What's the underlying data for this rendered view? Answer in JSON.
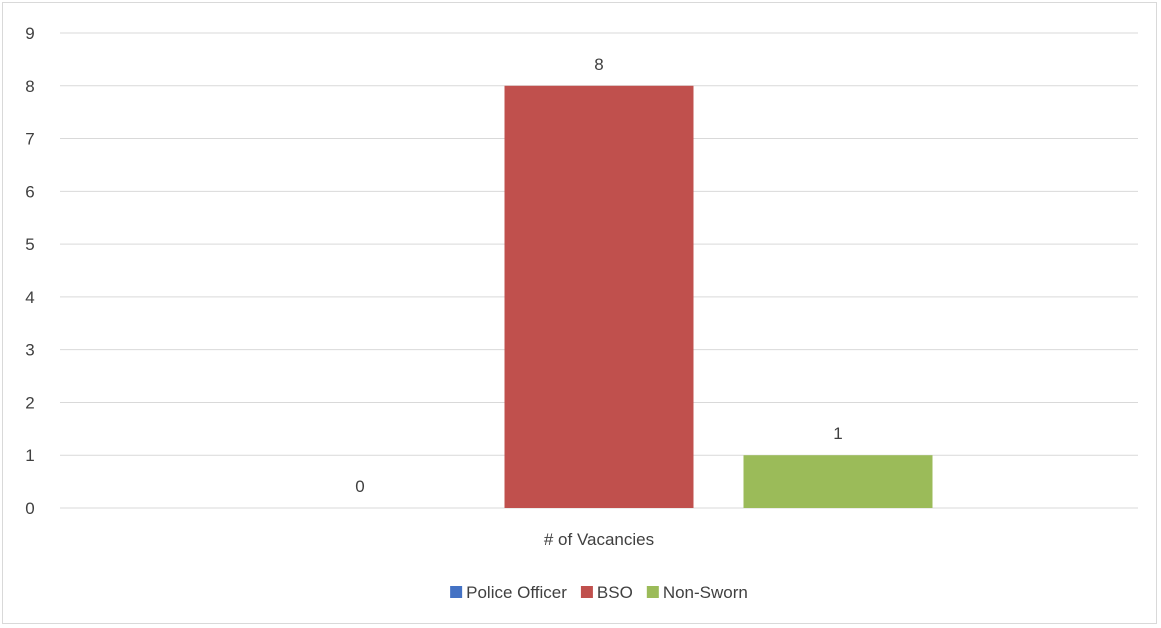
{
  "chart_data": {
    "type": "bar",
    "categories": [
      "# of Vacancies"
    ],
    "series": [
      {
        "name": "Police Officer",
        "values": [
          0
        ],
        "color": "#4472c4"
      },
      {
        "name": "BSO",
        "values": [
          8
        ],
        "color": "#c0504d"
      },
      {
        "name": "Non-Sworn",
        "values": [
          1
        ],
        "color": "#9bbb59"
      }
    ],
    "title": "",
    "xlabel": "",
    "ylabel": "",
    "ylim": [
      0,
      9
    ],
    "yticks": [
      0,
      1,
      2,
      3,
      4,
      5,
      6,
      7,
      8,
      9
    ],
    "grid": true,
    "legend_position": "bottom",
    "data_labels": true
  }
}
